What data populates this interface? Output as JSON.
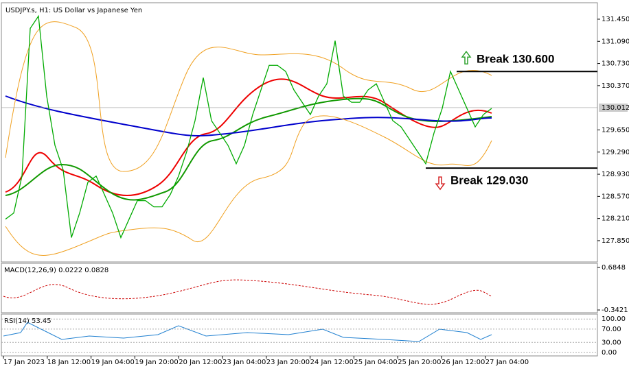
{
  "window": {
    "title": "USDJPY.s, H1:  US Dollar vs Japanese Yen",
    "current_price": {
      "value": 130.012,
      "label": "130.012"
    }
  },
  "price_panel": {
    "ylim": [
      127.504,
      131.706
    ],
    "yticks": [
      {
        "value": 131.45,
        "label": "131.450"
      },
      {
        "value": 131.09,
        "label": "131.090"
      },
      {
        "value": 130.73,
        "label": "130.730"
      },
      {
        "value": 130.37,
        "label": "130.370"
      },
      {
        "value": 129.65,
        "label": "129.650"
      },
      {
        "value": 129.29,
        "label": "129.290"
      },
      {
        "value": 128.93,
        "label": "128.930"
      },
      {
        "value": 128.57,
        "label": "128.570"
      },
      {
        "value": 128.21,
        "label": "128.210"
      },
      {
        "value": 127.85,
        "label": "127.850"
      }
    ],
    "closes": [
      128.2,
      128.3,
      128.9,
      131.3,
      131.5,
      130.2,
      129.4,
      129.0,
      127.9,
      128.3,
      128.8,
      128.9,
      128.6,
      128.3,
      127.9,
      128.2,
      128.5,
      128.5,
      128.4,
      128.4,
      128.6,
      128.9,
      129.3,
      129.8,
      130.5,
      129.8,
      129.6,
      129.4,
      129.1,
      129.4,
      129.9,
      130.3,
      130.7,
      130.7,
      130.6,
      130.3,
      130.1,
      129.9,
      130.2,
      130.4,
      131.1,
      130.2,
      130.1,
      130.1,
      130.3,
      130.4,
      130.1,
      129.8,
      129.7,
      129.5,
      129.3,
      129.1,
      129.6,
      130.0,
      130.6,
      130.3,
      130.0,
      129.7,
      129.9,
      130.0
    ]
  },
  "annotations": [
    {
      "label": "Break 130.600",
      "level": 130.6,
      "color": "#2ca02c"
    },
    {
      "label": "Break 129.030",
      "level": 129.03,
      "color": "#d62728"
    }
  ],
  "macd": {
    "label": "MACD(12,26,9) 0.0222 0.0828",
    "ylim": [
      -0.408,
      0.784
    ],
    "yticks": [
      0.6848,
      -0.3421
    ]
  },
  "rsi": {
    "label": "RSI(14) 53.45",
    "ylim": [
      -10.6,
      114.9
    ],
    "yticks": [
      {
        "value": 100,
        "label": "100.00"
      },
      {
        "value": 70,
        "label": "70.00"
      },
      {
        "value": 30,
        "label": "30.00"
      },
      {
        "value": 0,
        "label": "0.00"
      }
    ]
  },
  "xticks": [
    "17 Jan 2023",
    "18 Jan 12:00",
    "19 Jan 04:00",
    "19 Jan 20:00",
    "20 Jan 12:00",
    "23 Jan 04:00",
    "23 Jan 20:00",
    "24 Jan 12:00",
    "25 Jan 04:00",
    "25 Jan 20:00",
    "26 Jan 12:00",
    "27 Jan 04:00"
  ]
}
